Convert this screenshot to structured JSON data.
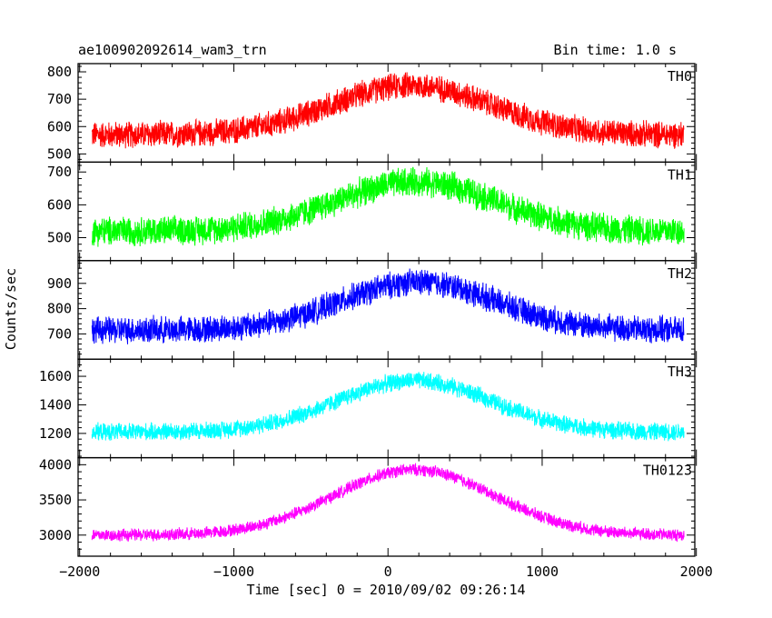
{
  "header": {
    "title": "ae100902092614_wam3_trn",
    "bin_time": "Bin time: 1.0 s"
  },
  "chart_data": {
    "type": "line",
    "xlabel": "Time [sec] 0 = 2010/09/02 09:26:14",
    "ylabel": "Counts/sec",
    "xlim": [
      -2010,
      1990
    ],
    "x_ticks": [
      -2000,
      -1000,
      0,
      1000,
      2000
    ],
    "x_tick_labels": [
      "−2000",
      "−1000",
      "0",
      "1000",
      "2000"
    ],
    "x_range": [
      -1920,
      1920
    ],
    "grid": false,
    "panels": [
      {
        "name": "TH0",
        "color": "#ff0000",
        "ylim": [
          470,
          830
        ],
        "y_ticks": [
          500,
          600,
          700,
          800
        ],
        "profile": {
          "baseline": 570,
          "peak": 750,
          "peak_center": 150,
          "sigma": 520,
          "noise_halfwidth": 55
        }
      },
      {
        "name": "TH1",
        "color": "#00ff00",
        "ylim": [
          430,
          730
        ],
        "y_ticks": [
          500,
          600,
          700
        ],
        "profile": {
          "baseline": 520,
          "peak": 670,
          "peak_center": 180,
          "sigma": 520,
          "noise_halfwidth": 50
        }
      },
      {
        "name": "TH2",
        "color": "#0000ff",
        "ylim": [
          600,
          990
        ],
        "y_ticks": [
          700,
          800,
          900
        ],
        "profile": {
          "baseline": 715,
          "peak": 905,
          "peak_center": 200,
          "sigma": 500,
          "noise_halfwidth": 60
        }
      },
      {
        "name": "TH3",
        "color": "#00ffff",
        "ylim": [
          1030,
          1720
        ],
        "y_ticks": [
          1200,
          1400,
          1600
        ],
        "profile": {
          "baseline": 1210,
          "peak": 1570,
          "peak_center": 170,
          "sigma": 500,
          "noise_halfwidth": 70
        }
      },
      {
        "name": "TH0123",
        "color": "#ff00ff",
        "ylim": [
          2700,
          4100
        ],
        "y_ticks": [
          3000,
          3500,
          4000
        ],
        "profile": {
          "baseline": 3000,
          "peak": 3930,
          "peak_center": 170,
          "sigma": 520,
          "noise_halfwidth": 100
        }
      }
    ]
  }
}
